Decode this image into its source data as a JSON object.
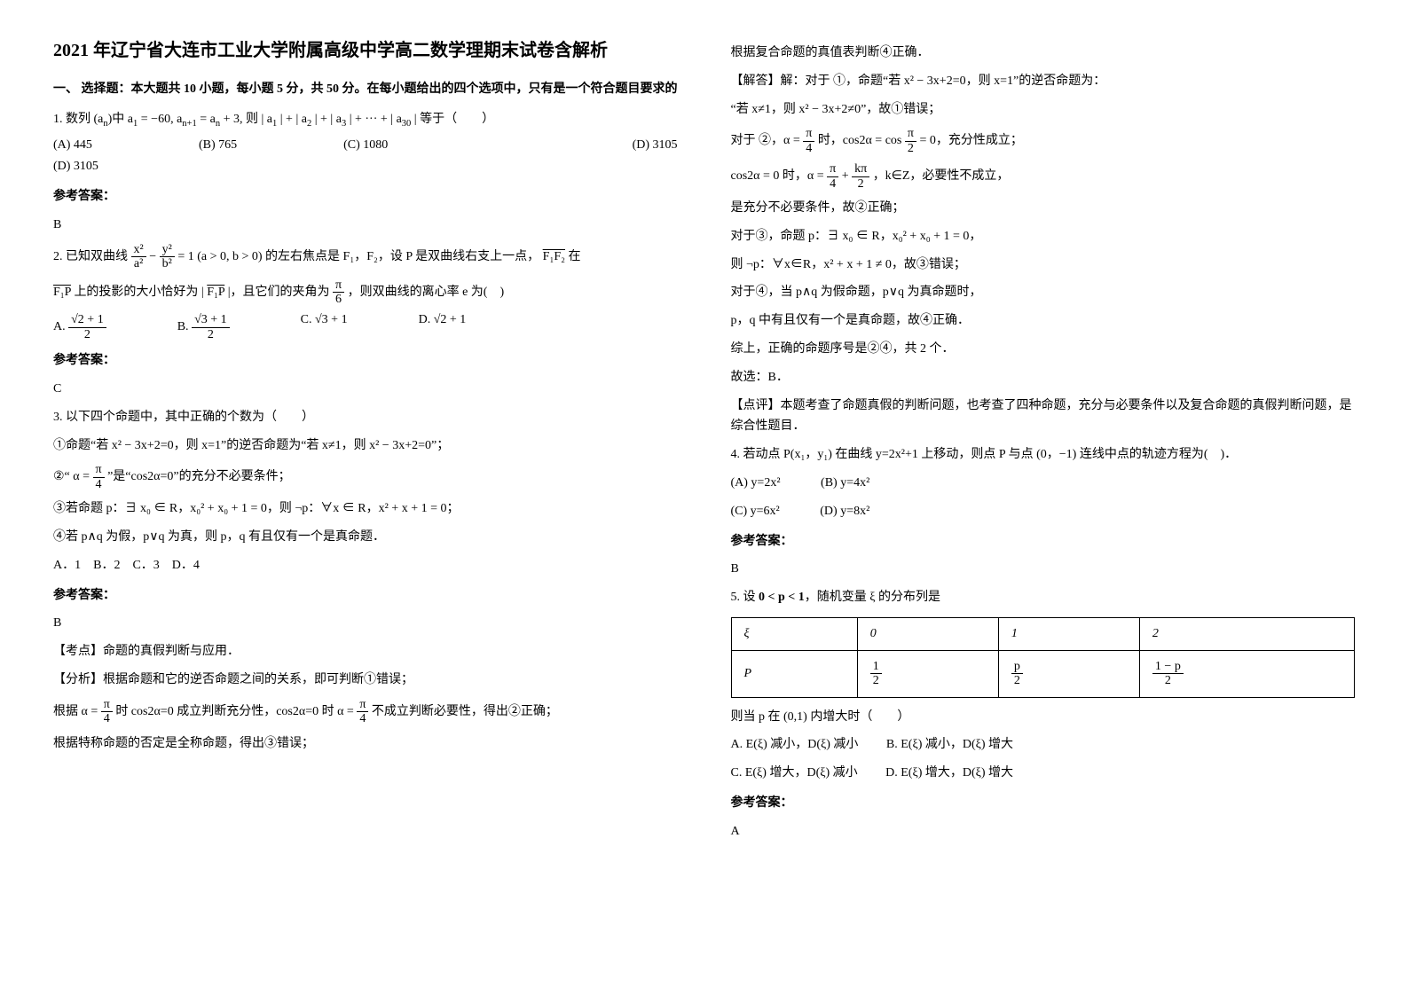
{
  "title": "2021 年辽宁省大连市工业大学附属高级中学高二数学理期末试卷含解析",
  "section1_head": "一、 选择题：本大题共 10 小题，每小题 5 分，共 50 分。在每小题给出的四个选项中，只有是一个符合题目要求的",
  "q1_stem_a": "1. 数列 (a",
  "q1_stem_b": ")中 a",
  "q1_stem_c": " = −60, a",
  "q1_stem_d": " = a",
  "q1_stem_e": " + 3, 则 | a",
  "q1_stem_f": " | + | a",
  "q1_stem_g": " | + | a",
  "q1_stem_h": " | + ··· + | a",
  "q1_stem_i": " | 等于（　　）",
  "q1_optA": "(A) 445",
  "q1_optB": "(B) 765",
  "q1_optC": "(C) 1080",
  "q1_optD": "(D) 3105",
  "q1_ans_label": "参考答案：",
  "q1_ans": "B",
  "q2_stem_a": "2. 已知双曲线 ",
  "q2_stem_b": " 的左右焦点是 F₁，F₂，设 P 是双曲线右支上一点，",
  "q2_stem_c": " 在 ",
  "q2_stem_d": " 上的投影的大小恰好为 | ",
  "q2_stem_e": " |，且它们的夹角为 ",
  "q2_stem_f": "，则双曲线的离心率 e 为(　)",
  "q2_frac1_num": "x²",
  "q2_frac1_den": "a²",
  "q2_frac2_num": "y²",
  "q2_frac2_den": "b²",
  "q2_eq_tail": " = 1 (a > 0, b > 0)",
  "q2_vec1": "F₁F₂",
  "q2_vec2": "F₁P",
  "q2_vec3": "F₁P",
  "q2_ang_num": "π",
  "q2_ang_den": "6",
  "q2_optA_pre": "A. ",
  "q2_optA_num": "√2 + 1",
  "q2_optA_den": "2",
  "q2_optB_pre": "B. ",
  "q2_optB_num": "√3 + 1",
  "q2_optB_den": "2",
  "q2_optC": "C. √3 + 1",
  "q2_optD": "D. √2 + 1",
  "q2_ans_label": "参考答案：",
  "q2_ans": "C",
  "q3_stem": "3. 以下四个命题中，其中正确的个数为（　　）",
  "q3_p1": "①命题“若 x² − 3x+2=0，则 x=1”的逆否命题为“若 x≠1，则 x² − 3x+2=0”；",
  "q3_p2a": "②“ ",
  "q3_p2_num": "π",
  "q3_p2_den": "4",
  "q3_p2b": " ”是“cos2α=0”的充分不必要条件；",
  "q3_p2_alpha": "α = ",
  "q3_p3a": "③若命题 p：∃ x₀ ∈ R，x₀² + x₀ + 1 = 0，则 ¬p：∀x ∈ R，x² + x + 1 = 0；",
  "q3_p4": "④若 p∧q 为假，p∨q 为真，则 p，q 有且仅有一个是真命题．",
  "q3_opts": "A．1　B．2　C．3　D．4",
  "q3_ans_label": "参考答案：",
  "q3_ans": "B",
  "q3_kd": "【考点】命题的真假判断与应用．",
  "q3_fx": "【分析】根据命题和它的逆否命题之间的关系，即可判断①错误；",
  "q3_fx2a": "根据 ",
  "q3_fx2_alpha": "α = ",
  "q3_fx2_num": "π",
  "q3_fx2_den": "4",
  "q3_fx2b": " 时 cos2α=0 成立判断充分性，cos2α=0 时 α = ",
  "q3_fx2_num2": "π",
  "q3_fx2_den2": "4",
  "q3_fx2c": " 不成立判断必要性，得出②正确；",
  "q3_fx3": "根据特称命题的否定是全称命题，得出③错误；",
  "r_line1": "根据复合命题的真值表判断④正确．",
  "r_jd": "【解答】解：对于 ①，命题“若 x² − 3x+2=0，则 x=1”的逆否命题为：",
  "r_jd2": "“若 x≠1，则 x² − 3x+2≠0”，故①错误；",
  "r_2a": "对于 ②，",
  "r_2_alpha": "α = ",
  "r_2_num": "π",
  "r_2_den": "4",
  "r_2b": " 时，cos2α = cos ",
  "r_2_num2": "π",
  "r_2_den2": "2",
  "r_2c": " = 0，充分性成立；",
  "r_2d": "cos2α = 0 时，α = ",
  "r_2_numA": "π",
  "r_2_denA": "4",
  "r_2_plus": " + ",
  "r_2_numB": "kπ",
  "r_2_denB": "2",
  "r_2e": "，k∈Z，必要性不成立，",
  "r_2f": "是充分不必要条件，故②正确；",
  "r_3a": "对于③，命题 p：∃ x₀ ∈ R，x₀² + x₀ + 1 = 0，",
  "r_3b": "则 ¬p：∀x∈R，x² + x + 1 ≠ 0，故③错误；",
  "r_4a": "对于④，当 p∧q 为假命题，p∨q 为真命题时，",
  "r_4b": "p，q 中有且仅有一个是真命题，故④正确．",
  "r_sum": "综上，正确的命题序号是②④，共 2 个．",
  "r_pick": "故选：B．",
  "r_dp": "【点评】本题考查了命题真假的判断问题，也考查了四种命题，充分与必要条件以及复合命题的真假判断问题，是综合性题目．",
  "q4_stem": "4. 若动点 P(x₁，y₁) 在曲线 y=2x²+1 上移动，则点 P 与点 (0，−1) 连线中点的轨迹方程为(　)．",
  "q4_optA": "(A) y=2x²",
  "q4_optB": "(B) y=4x²",
  "q4_optC": "(C) y=6x²",
  "q4_optD": "(D) y=8x²",
  "q4_ans_label": "参考答案：",
  "q4_ans": "B",
  "q5_stem_a": "5. 设 ",
  "q5_cond": "0 < p < 1",
  "q5_stem_b": "，随机变量 ξ 的分布列是",
  "q5_t_r0c0": "ξ",
  "q5_t_r0c1": "0",
  "q5_t_r0c2": "1",
  "q5_t_r0c3": "2",
  "q5_t_r1c0": "P",
  "q5_t_r1c1_num": "1",
  "q5_t_r1c1_den": "2",
  "q5_t_r1c2_num": "p",
  "q5_t_r1c2_den": "2",
  "q5_t_r1c3_num": "1 − p",
  "q5_t_r1c3_den": "2",
  "q5_tail": "则当 p 在 (0,1) 内增大时（　　）",
  "q5_optA": "A. E(ξ) 减小，D(ξ) 减小",
  "q5_optB": "B. E(ξ) 减小，D(ξ) 增大",
  "q5_optC": "C. E(ξ) 增大，D(ξ) 减小",
  "q5_optD": "D. E(ξ) 增大，D(ξ) 增大",
  "q5_ans_label": "参考答案：",
  "q5_ans": "A"
}
